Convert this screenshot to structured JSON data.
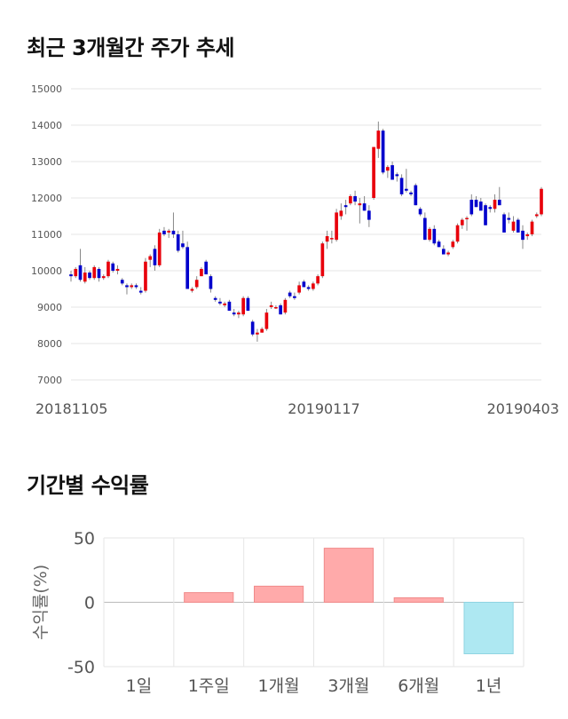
{
  "sections": {
    "price_title": "최근 3개월간 주가 추세",
    "returns_title": "기간별 수익률"
  },
  "colors": {
    "up": "#e8000b",
    "down": "#0000cc",
    "positive_bar": "#ffaaaa",
    "negative_bar": "#aee8f2"
  },
  "chart_data": [
    {
      "type": "candlestick",
      "title": "최근 3개월간 주가 추세",
      "ylim": [
        7000,
        15000
      ],
      "y_ticks": [
        7000,
        8000,
        9000,
        10000,
        11000,
        12000,
        13000,
        14000,
        15000
      ],
      "x_tick_labels": [
        "20181105",
        "20190117",
        "20190403"
      ],
      "grid": true,
      "candles": [
        [
          9900,
          10000,
          9700,
          9850
        ],
        [
          9850,
          10100,
          9800,
          10050
        ],
        [
          10150,
          10600,
          9700,
          9750
        ],
        [
          9700,
          10100,
          9650,
          9950
        ],
        [
          9950,
          10000,
          9750,
          9800
        ],
        [
          9800,
          10150,
          9750,
          10100
        ],
        [
          10050,
          10100,
          9700,
          9800
        ],
        [
          9800,
          9900,
          9750,
          9850
        ],
        [
          9850,
          10300,
          9800,
          10250
        ],
        [
          10200,
          10250,
          9950,
          10000
        ],
        [
          10000,
          10150,
          9900,
          10050
        ],
        [
          9750,
          9800,
          9600,
          9650
        ],
        [
          9600,
          9650,
          9350,
          9550
        ],
        [
          9550,
          9650,
          9500,
          9600
        ],
        [
          9600,
          9650,
          9500,
          9550
        ],
        [
          9450,
          9550,
          9350,
          9400
        ],
        [
          9450,
          10350,
          9400,
          10250
        ],
        [
          10300,
          10450,
          10100,
          10400
        ],
        [
          10600,
          10700,
          10000,
          10150
        ],
        [
          10150,
          11150,
          10100,
          11050
        ],
        [
          11100,
          11200,
          10950,
          11000
        ],
        [
          11050,
          11150,
          10900,
          11100
        ],
        [
          11100,
          11600,
          10900,
          11000
        ],
        [
          11000,
          11100,
          10500,
          10550
        ],
        [
          10750,
          11100,
          10600,
          10650
        ],
        [
          10650,
          10800,
          9500,
          9500
        ],
        [
          9450,
          9550,
          9400,
          9500
        ],
        [
          9550,
          9850,
          9500,
          9750
        ],
        [
          9850,
          10100,
          9850,
          10050
        ],
        [
          10250,
          10300,
          9950,
          9900
        ],
        [
          9850,
          9900,
          9400,
          9500
        ],
        [
          9250,
          9300,
          9150,
          9200
        ],
        [
          9150,
          9250,
          9050,
          9100
        ],
        [
          9050,
          9150,
          9000,
          9100
        ],
        [
          9150,
          9200,
          8950,
          8900
        ],
        [
          8850,
          8950,
          8750,
          8800
        ],
        [
          8800,
          8900,
          8700,
          8850
        ],
        [
          8800,
          9300,
          8750,
          9250
        ],
        [
          9250,
          9300,
          8900,
          8900
        ],
        [
          8600,
          8650,
          8200,
          8250
        ],
        [
          8250,
          8400,
          8050,
          8300
        ],
        [
          8300,
          8450,
          8300,
          8400
        ],
        [
          8400,
          8950,
          8350,
          8850
        ],
        [
          9000,
          9150,
          8950,
          9050
        ],
        [
          9000,
          9050,
          8950,
          9000
        ],
        [
          9050,
          9100,
          8800,
          8800
        ],
        [
          8850,
          9250,
          8800,
          9200
        ],
        [
          9400,
          9450,
          9250,
          9300
        ],
        [
          9300,
          9400,
          9200,
          9250
        ],
        [
          9400,
          9700,
          9350,
          9600
        ],
        [
          9700,
          9750,
          9550,
          9550
        ],
        [
          9550,
          9600,
          9450,
          9500
        ],
        [
          9500,
          9700,
          9450,
          9650
        ],
        [
          9650,
          9900,
          9600,
          9850
        ],
        [
          9850,
          10800,
          9800,
          10750
        ],
        [
          10800,
          11100,
          10600,
          10950
        ],
        [
          10900,
          11100,
          10750,
          10900
        ],
        [
          10850,
          11700,
          10800,
          11600
        ],
        [
          11500,
          11850,
          11400,
          11650
        ],
        [
          11800,
          11950,
          11550,
          11750
        ],
        [
          11850,
          12100,
          11800,
          12050
        ],
        [
          12050,
          12200,
          11800,
          11900
        ],
        [
          11800,
          12000,
          11300,
          11850
        ],
        [
          11850,
          12050,
          11650,
          11650
        ],
        [
          11650,
          11800,
          11200,
          11400
        ],
        [
          12000,
          13400,
          11950,
          13400
        ],
        [
          13350,
          14100,
          13100,
          13850
        ],
        [
          13850,
          13900,
          12650,
          12700
        ],
        [
          12750,
          12900,
          12550,
          12850
        ],
        [
          12900,
          13000,
          12500,
          12500
        ],
        [
          12650,
          12700,
          12450,
          12600
        ],
        [
          12550,
          12650,
          12050,
          12100
        ],
        [
          12250,
          12800,
          12150,
          12200
        ],
        [
          12150,
          12200,
          12050,
          12100
        ],
        [
          12350,
          12400,
          11800,
          11800
        ],
        [
          11700,
          11750,
          11500,
          11550
        ],
        [
          11450,
          11600,
          10850,
          10850
        ],
        [
          10850,
          11200,
          10800,
          11150
        ],
        [
          11150,
          11250,
          10700,
          10750
        ],
        [
          10800,
          10850,
          10650,
          10650
        ],
        [
          10600,
          10700,
          10450,
          10450
        ],
        [
          10450,
          10550,
          10400,
          10500
        ],
        [
          10650,
          10850,
          10600,
          10800
        ],
        [
          10800,
          11300,
          10750,
          11250
        ],
        [
          11250,
          11450,
          11150,
          11400
        ],
        [
          11450,
          11500,
          11100,
          11450
        ],
        [
          11950,
          12100,
          11500,
          11550
        ],
        [
          11950,
          12050,
          11750,
          11750
        ],
        [
          11900,
          12000,
          11700,
          11650
        ],
        [
          11800,
          11850,
          11250,
          11250
        ],
        [
          11750,
          11800,
          11600,
          11700
        ],
        [
          11700,
          12100,
          11600,
          11950
        ],
        [
          11950,
          12300,
          11800,
          11800
        ],
        [
          11550,
          11600,
          11050,
          11050
        ],
        [
          11450,
          11600,
          11300,
          11400
        ],
        [
          11100,
          11500,
          11050,
          11350
        ],
        [
          11400,
          11450,
          11050,
          11050
        ],
        [
          11100,
          11250,
          10600,
          10850
        ],
        [
          10950,
          11050,
          10850,
          11000
        ],
        [
          11000,
          11400,
          10950,
          11350
        ],
        [
          11500,
          11600,
          11450,
          11550
        ],
        [
          11550,
          12300,
          11500,
          12250
        ]
      ]
    },
    {
      "type": "bar",
      "title": "기간별 수익률",
      "ylabel": "수익률(%)",
      "ylim": [
        -50,
        50
      ],
      "y_ticks": [
        -50,
        0,
        50
      ],
      "categories": [
        "1일",
        "1주일",
        "1개월",
        "3개월",
        "6개월",
        "1년"
      ],
      "values": [
        0,
        7.5,
        12.5,
        42,
        3.5,
        -40
      ],
      "grid": true
    }
  ]
}
